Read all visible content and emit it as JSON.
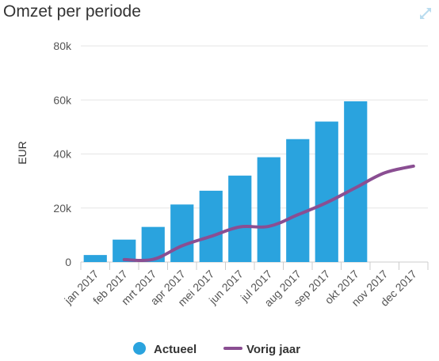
{
  "header": {
    "title": "Omzet per periode",
    "expand_icon": "expand-arrows-icon"
  },
  "colors": {
    "bar": "#2aa3de",
    "line": "#8a4e92",
    "expand": "#b9dcef",
    "axis": "#cccccc"
  },
  "chart_data": {
    "type": "bar",
    "title": "Omzet per periode",
    "xlabel": "",
    "ylabel": "EUR",
    "ylim": [
      0,
      80000
    ],
    "yticks": [
      0,
      20000,
      40000,
      60000,
      80000
    ],
    "ytick_labels": [
      "0",
      "20k",
      "40k",
      "60k",
      "80k"
    ],
    "categories": [
      "jan 2017",
      "feb 2017",
      "mrt 2017",
      "apr 2017",
      "mei 2017",
      "jun 2017",
      "jul 2017",
      "aug 2017",
      "sep 2017",
      "okt 2017",
      "nov 2017",
      "dec 2017"
    ],
    "series": [
      {
        "name": "Actueel",
        "type": "bar",
        "values": [
          2600,
          8300,
          13000,
          21300,
          26400,
          32000,
          38800,
          45500,
          52000,
          59500,
          null,
          null
        ]
      },
      {
        "name": "Vorig jaar",
        "type": "line",
        "values": [
          null,
          900,
          1000,
          6000,
          9500,
          13000,
          13200,
          17500,
          22000,
          27500,
          33000,
          35500
        ]
      }
    ],
    "legend": "bottom"
  }
}
